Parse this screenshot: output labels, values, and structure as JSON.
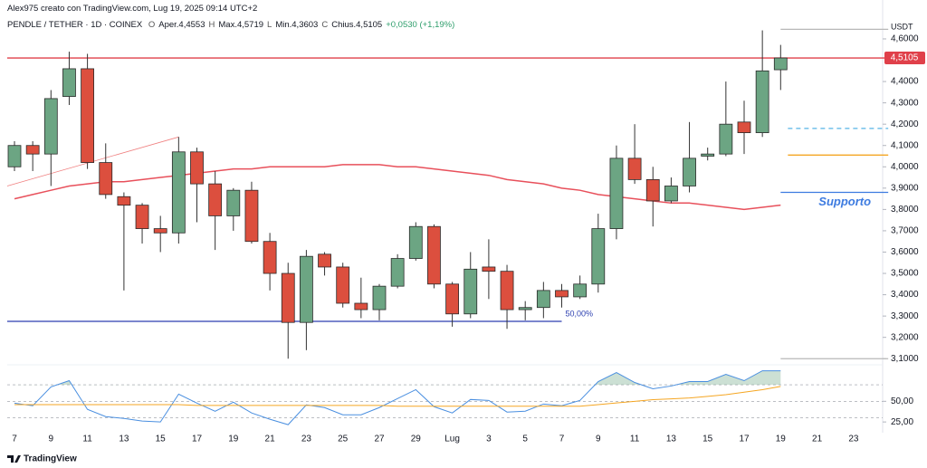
{
  "header": {
    "credit": "Alex975 creato con TradingView.com, Lug 19, 2025 09:14 UTC+2",
    "symbol": "PENDLE / TETHER · 1D · COINEX",
    "ohlc": [
      "O",
      "Aper.4,4553",
      "H",
      "Max.4,5719",
      "L",
      "Min.4,3603",
      "C",
      "Chius.4,5105"
    ],
    "change": "+0,0530 (+1,19%)",
    "currency": "USDT",
    "logo": "TradingView"
  },
  "chart_data": [
    {
      "type": "candlestick",
      "categories": [
        "7",
        null,
        "9",
        null,
        "11",
        null,
        "13",
        null,
        "15",
        null,
        "17",
        null,
        "19",
        null,
        "21",
        null,
        "23",
        null,
        "25",
        null,
        "27",
        null,
        "29",
        null,
        "Lug",
        null,
        "3",
        null,
        "5",
        null,
        "7",
        null,
        "9",
        null,
        "11",
        null,
        "13",
        null,
        "15",
        null,
        "17",
        null,
        "19",
        null,
        "21",
        null,
        "23"
      ],
      "open": [
        4.0,
        4.1,
        4.06,
        4.33,
        4.46,
        4.02,
        3.86,
        3.82,
        3.71,
        3.69,
        4.07,
        3.92,
        3.77,
        3.89,
        3.65,
        3.5,
        3.27,
        3.59,
        3.53,
        3.36,
        3.33,
        3.44,
        3.57,
        3.72,
        3.45,
        3.31,
        3.53,
        3.51,
        3.33,
        3.34,
        3.42,
        3.39,
        3.45,
        3.71,
        4.04,
        3.94,
        3.84,
        3.91,
        4.05,
        4.06,
        4.21,
        4.16,
        4.4553,
        null,
        null,
        null,
        null
      ],
      "high": [
        4.12,
        4.12,
        4.36,
        4.54,
        4.53,
        4.11,
        3.88,
        3.83,
        3.77,
        4.14,
        4.09,
        3.98,
        3.9,
        3.93,
        3.69,
        3.55,
        3.61,
        3.6,
        3.55,
        3.48,
        3.45,
        3.59,
        3.74,
        3.73,
        3.46,
        3.6,
        3.66,
        3.54,
        3.37,
        3.46,
        3.45,
        3.49,
        3.78,
        4.1,
        4.2,
        4.0,
        3.95,
        4.21,
        4.09,
        4.4,
        4.31,
        4.64,
        4.5719,
        null,
        null,
        null,
        null
      ],
      "low": [
        3.98,
        3.98,
        3.91,
        4.29,
        3.99,
        3.85,
        3.42,
        3.64,
        3.6,
        3.64,
        3.74,
        3.61,
        3.7,
        3.64,
        3.42,
        3.1,
        3.14,
        3.49,
        3.34,
        3.29,
        3.28,
        3.43,
        3.56,
        3.43,
        3.25,
        3.29,
        3.38,
        3.24,
        3.28,
        3.29,
        3.34,
        3.38,
        3.41,
        3.66,
        3.92,
        3.72,
        3.83,
        3.88,
        4.03,
        4.05,
        4.06,
        4.14,
        4.3603,
        null,
        null,
        null,
        null
      ],
      "close": [
        4.1,
        4.06,
        4.32,
        4.46,
        4.02,
        3.87,
        3.82,
        3.71,
        3.69,
        4.07,
        3.92,
        3.77,
        3.89,
        3.65,
        3.5,
        3.27,
        3.58,
        3.53,
        3.36,
        3.33,
        3.44,
        3.57,
        3.72,
        3.45,
        3.31,
        3.52,
        3.51,
        3.33,
        3.34,
        3.42,
        3.39,
        3.45,
        3.71,
        4.04,
        3.94,
        3.84,
        3.91,
        4.04,
        4.06,
        4.2,
        4.16,
        4.45,
        4.5105,
        null,
        null,
        null,
        null
      ],
      "up_color": "#6ca583",
      "down_color": "#dc4f3e",
      "moving_average": {
        "color": "#e8505b",
        "values": [
          3.85,
          3.87,
          3.89,
          3.91,
          3.92,
          3.93,
          3.93,
          3.94,
          3.95,
          3.96,
          3.97,
          3.98,
          3.99,
          3.99,
          4.0,
          4.0,
          4.0,
          4.0,
          4.01,
          4.01,
          4.01,
          4.0,
          4.0,
          3.99,
          3.98,
          3.97,
          3.96,
          3.94,
          3.93,
          3.92,
          3.9,
          3.89,
          3.87,
          3.86,
          3.85,
          3.84,
          3.83,
          3.83,
          3.82,
          3.81,
          3.8,
          3.81,
          3.82,
          null,
          null,
          null,
          null
        ]
      },
      "trendline": {
        "color": "#f08080",
        "from": [
          -0.4,
          3.91
        ],
        "to": [
          9,
          4.14
        ]
      },
      "hlines": [
        {
          "value": 4.5105,
          "color": "#e0404a",
          "from": -0.4,
          "to": 47.9
        },
        {
          "value": 3.275,
          "color": "#2c3fb0",
          "from": -0.4,
          "to": 30,
          "label": "50,00%"
        },
        {
          "value": 4.645,
          "color": "#b8b8b8",
          "from": 42,
          "to": 47.9
        },
        {
          "value": 3.1,
          "color": "#b8b8b8",
          "from": 42,
          "to": 47.9
        },
        {
          "value": 4.18,
          "color": "#57b4e6",
          "from": 42.4,
          "to": 47.9,
          "dash": true
        },
        {
          "value": 4.055,
          "color": "#f5a623",
          "from": 42.4,
          "to": 47.9
        },
        {
          "value": 3.88,
          "color": "#3d7be0",
          "from": 42,
          "to": 47.9,
          "label": "Supporto"
        }
      ],
      "last_price": {
        "value": 4.5105,
        "label": "4,5105"
      },
      "ylim": [
        3.084,
        4.74
      ],
      "yticks": [
        {
          "value": 4.6,
          "label": "4,6000"
        },
        {
          "value": 4.4,
          "label": "4,4000"
        },
        {
          "value": 4.3,
          "label": "4,3000"
        },
        {
          "value": 4.2,
          "label": "4,2000"
        },
        {
          "value": 4.1,
          "label": "4,1000"
        },
        {
          "value": 4.0,
          "label": "4,0000"
        },
        {
          "value": 3.9,
          "label": "3,9000"
        },
        {
          "value": 3.8,
          "label": "3,8000"
        },
        {
          "value": 3.7,
          "label": "3,7000"
        },
        {
          "value": 3.6,
          "label": "3,6000"
        },
        {
          "value": 3.5,
          "label": "3,5000"
        },
        {
          "value": 3.4,
          "label": "3,4000"
        },
        {
          "value": 3.3,
          "label": "3,3000"
        },
        {
          "value": 3.2,
          "label": "3,2000"
        },
        {
          "value": 3.1,
          "label": "3,1000"
        }
      ]
    },
    {
      "type": "line",
      "series": [
        {
          "color": "#4a8fe0",
          "values": [
            47.8,
            44.6,
            67.4,
            75,
            40.2,
            31.5,
            29.3,
            26.1,
            25,
            58.7,
            47.8,
            38,
            48.9,
            35.9,
            28.3,
            21.7,
            45.7,
            42.4,
            33.7,
            33.7,
            42.4,
            53.3,
            64.1,
            43.5,
            35.9,
            52.2,
            51.1,
            37,
            38,
            46.7,
            44.6,
            51.1,
            73.9,
            84.8,
            72.8,
            65.2,
            68.5,
            73.9,
            73.9,
            82.6,
            75,
            87,
            87,
            null,
            null,
            null,
            null
          ]
        },
        {
          "color": "#f5a623",
          "values": [
            46,
            46,
            46,
            46,
            46,
            46,
            46,
            46,
            46,
            46,
            45,
            45,
            45,
            45,
            45,
            45,
            45,
            45,
            45,
            45,
            45,
            44,
            44,
            44,
            44,
            44,
            44,
            44,
            44,
            44,
            44,
            44,
            46,
            48,
            50,
            52,
            53,
            54,
            56,
            58,
            61,
            64,
            68,
            null,
            null,
            null,
            null
          ]
        }
      ],
      "levels": [
        70,
        50,
        30
      ],
      "overbought": 70,
      "fill_color": "#6ca583",
      "ylim": [
        12,
        92
      ],
      "yticks": [
        {
          "value": 50,
          "label": "50,00"
        },
        {
          "value": 25,
          "label": "25,00"
        }
      ]
    }
  ]
}
